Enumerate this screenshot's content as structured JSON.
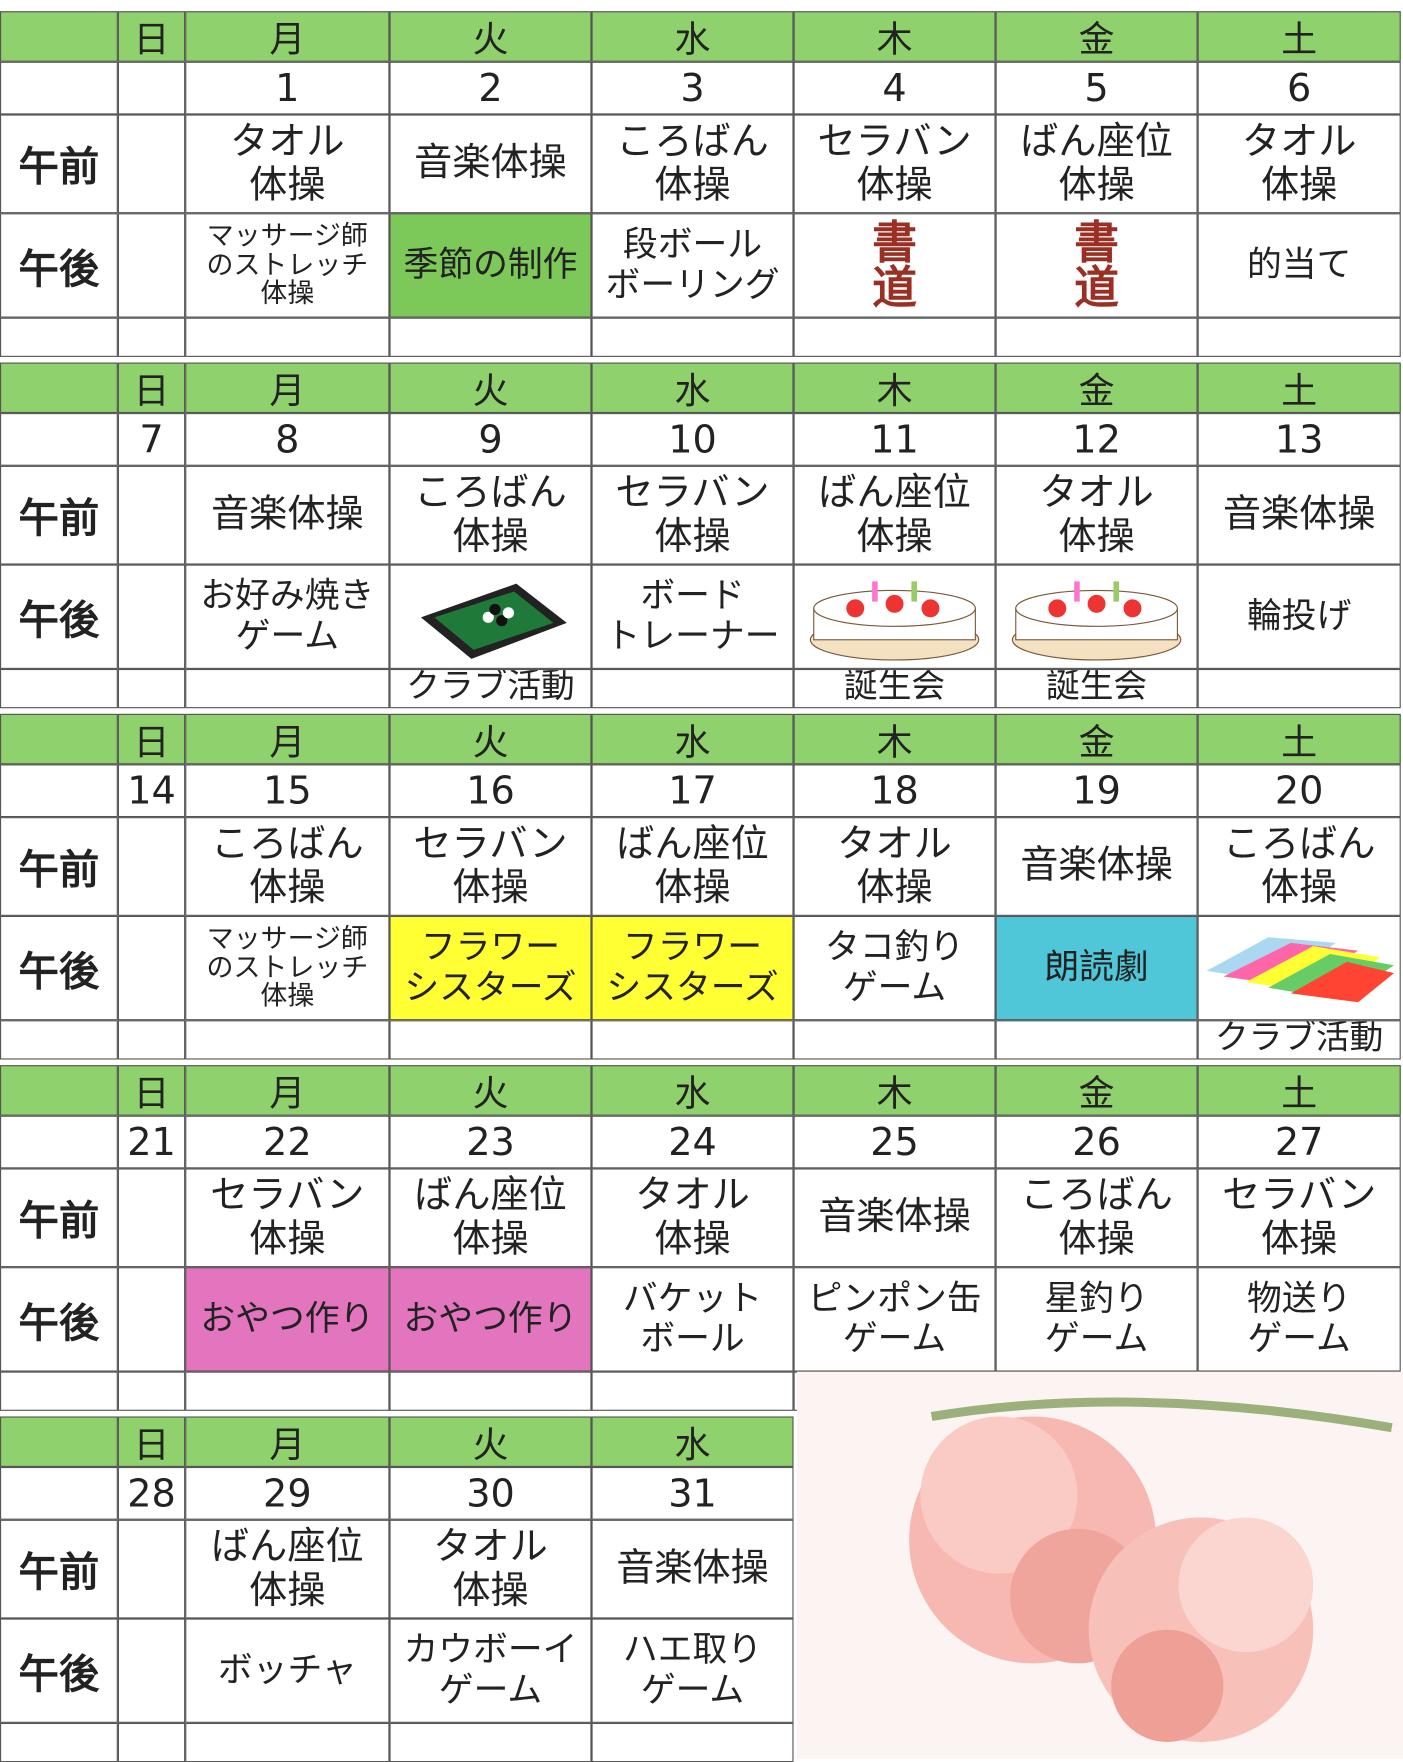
{
  "weekdays": [
    "日",
    "月",
    "火",
    "水",
    "木",
    "金",
    "土"
  ],
  "am_label": "午前",
  "pm_label": "午後",
  "weeks": [
    {
      "dates": [
        null,
        1,
        2,
        3,
        4,
        5,
        6
      ],
      "am": [
        null,
        "タオル\n体操",
        "音楽体操",
        "ころばん\n体操",
        "セラバン\n体操",
        "ばん座位\n体操",
        "タオル\n体操"
      ],
      "pm": [
        null,
        "マッサージ師\nのストレッチ\n体操",
        {
          "text": "季節の制作",
          "color": "#7cc95a"
        },
        "段ボール\nボーリング",
        {
          "text": "書\n道",
          "text_color": "#9a2f24"
        },
        {
          "text": "書\n道",
          "text_color": "#9a2f24"
        },
        "的当て"
      ],
      "notes": [
        null,
        null,
        null,
        null,
        null,
        null,
        null
      ]
    },
    {
      "dates": [
        7,
        8,
        9,
        10,
        11,
        12,
        13
      ],
      "am": [
        null,
        "音楽体操",
        "ころばん\n体操",
        "セラバン\n体操",
        "ばん座位\n体操",
        "タオル\n体操",
        "音楽体操"
      ],
      "pm": [
        null,
        "お好み焼き\nゲーム",
        null,
        "ボード\nトレーナー",
        null,
        null,
        "輪投げ"
      ],
      "notes": [
        null,
        null,
        "クラブ活動",
        null,
        "誕生会",
        "誕生会",
        null
      ]
    },
    {
      "dates": [
        14,
        15,
        16,
        17,
        18,
        19,
        20
      ],
      "am": [
        null,
        "ころばん\n体操",
        "セラバン\n体操",
        "ばん座位\n体操",
        "タオル\n体操",
        "音楽体操",
        "ころばん\n体操"
      ],
      "pm": [
        null,
        "マッサージ師\nのストレッチ\n体操",
        {
          "text": "フラワー\nシスターズ",
          "color": "#ffff33"
        },
        {
          "text": "フラワー\nシスターズ",
          "color": "#ffff33"
        },
        "タコ釣り\nゲーム",
        {
          "text": "朗読劇",
          "color": "#4fc7d8"
        },
        null
      ],
      "notes": [
        null,
        null,
        null,
        null,
        null,
        null,
        "クラブ活動"
      ]
    },
    {
      "dates": [
        21,
        22,
        23,
        24,
        25,
        26,
        27
      ],
      "am": [
        null,
        "セラバン\n体操",
        "ばん座位\n体操",
        "タオル\n体操",
        "音楽体操",
        "ころばん\n体操",
        "セラバン\n体操"
      ],
      "pm": [
        null,
        {
          "text": "おやつ作り",
          "color": "#e275bd"
        },
        {
          "text": "おやつ作り",
          "color": "#e275bd"
        },
        "バケット\nボール",
        "ピンポン缶\nゲーム",
        "星釣り\nゲーム",
        "物送り\nゲーム"
      ],
      "notes": [
        null,
        null,
        null,
        null,
        null,
        null,
        null
      ]
    },
    {
      "dates": [
        28,
        29,
        30,
        31
      ],
      "am": [
        null,
        "ばん座位\n体操",
        "タオル\n体操",
        "音楽体操"
      ],
      "pm": [
        null,
        "ボッチャ",
        "カウボーイ\nゲーム",
        "ハエ取り\nゲーム"
      ],
      "notes": [
        null,
        null,
        null,
        null
      ]
    }
  ]
}
